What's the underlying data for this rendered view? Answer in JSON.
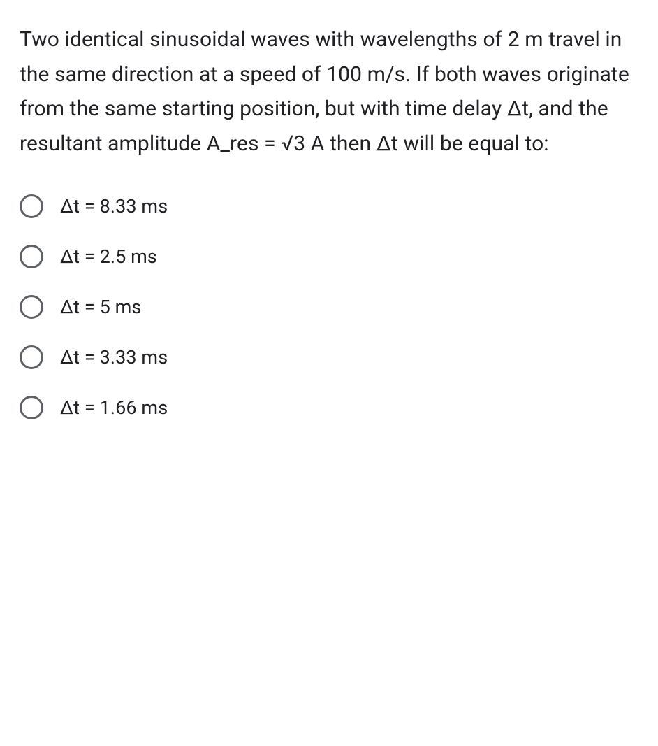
{
  "question": {
    "text": "Two identical sinusoidal waves with wavelengths of 2 m travel in the same direction at a speed of 100 m/s. If both waves originate from the same starting position, but with time delay Δt, and the resultant amplitude A_res = √3 A then Δt will be equal to:"
  },
  "options": [
    {
      "label": "Δt = 8.33 ms"
    },
    {
      "label": "Δt = 2.5 ms"
    },
    {
      "label": "Δt = 5 ms"
    },
    {
      "label": "Δt = 3.33 ms"
    },
    {
      "label": "Δt = 1.66 ms"
    }
  ],
  "styling": {
    "background_color": "#ffffff",
    "text_color": "#202124",
    "radio_border_color": "#5f6368",
    "question_fontsize": 30,
    "option_fontsize": 27,
    "radio_size": 34,
    "radio_border_width": 3,
    "line_height": 1.65,
    "option_gap": 38
  }
}
